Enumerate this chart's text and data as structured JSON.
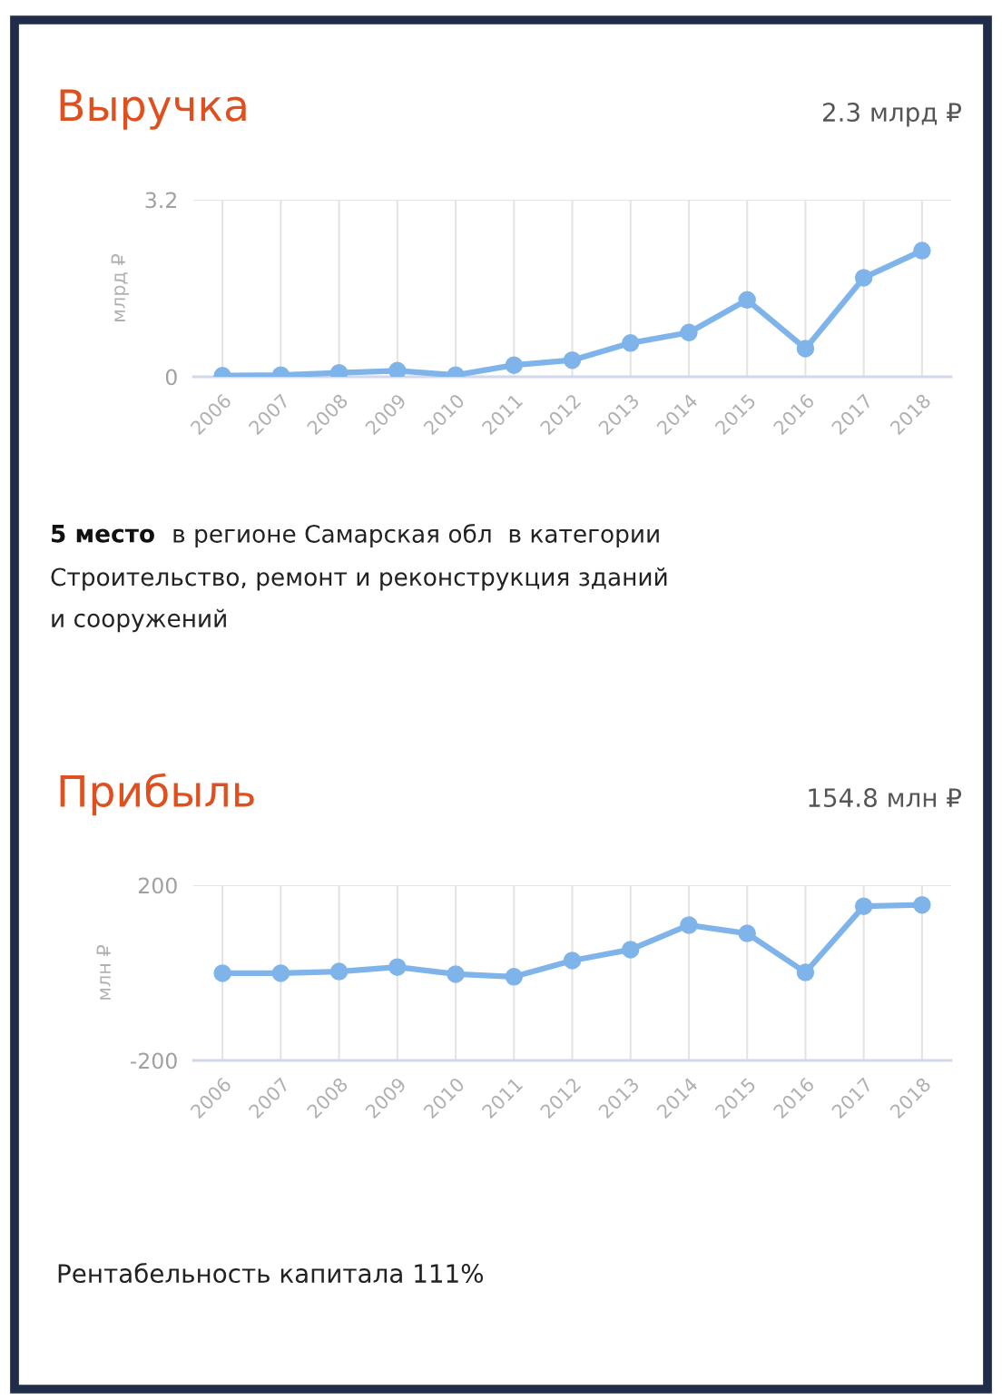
{
  "chart_data": [
    {
      "type": "line",
      "title": "Выручка",
      "subtitle": "2.3 млрд ₽",
      "ylabel": "млрд ₽",
      "categories": [
        "2006",
        "2007",
        "2008",
        "2009",
        "2010",
        "2011",
        "2012",
        "2013",
        "2014",
        "2015",
        "2016",
        "2017",
        "2018"
      ],
      "series": [
        {
          "color": "#7fb4ea",
          "values": [
            0.02,
            0.03,
            0.07,
            0.11,
            0.03,
            0.21,
            0.3,
            0.61,
            0.8,
            1.39,
            0.51,
            1.79,
            2.28
          ]
        }
      ],
      "ylim": [
        0,
        3.2
      ],
      "yticks": [
        0,
        3.2
      ],
      "grid": true,
      "marker": "circle",
      "line_style": "solid",
      "annotations": [
        "5 место",
        "в регионе Самарская обл  в категории\nСтроительство, ремонт и реконструкция зданий\nи сооружений"
      ]
    },
    {
      "type": "line",
      "title": "Прибыль",
      "subtitle": "154.8 млн ₽",
      "ylabel": "млн ₽",
      "categories": [
        "2006",
        "2007",
        "2008",
        "2009",
        "2010",
        "2011",
        "2012",
        "2013",
        "2014",
        "2015",
        "2016",
        "2017",
        "2018"
      ],
      "series": [
        {
          "color": "#7fb4ea",
          "values": [
            -1,
            -1,
            3,
            13,
            -3,
            -9,
            28,
            53,
            109,
            90,
            1,
            152,
            155
          ]
        }
      ],
      "ylim": [
        -200,
        200
      ],
      "yticks": [
        -200,
        200
      ],
      "grid": true,
      "marker": "circle",
      "line_style": "solid",
      "annotations": [
        "Рентабельность капитала 111%"
      ]
    }
  ]
}
